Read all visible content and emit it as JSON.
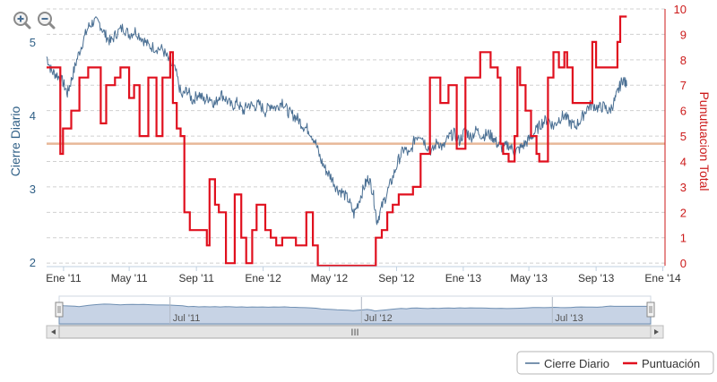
{
  "toolbar": {
    "zoom_in_icon": "magnifier-plus-icon",
    "zoom_out_icon": "magnifier-minus-icon"
  },
  "chart_data": {
    "type": "line",
    "x_axis": {
      "type": "date",
      "range": [
        "2010-12-01",
        "2014-01-05"
      ],
      "tick_labels": [
        "Ene '11",
        "May '11",
        "Sep '11",
        "Ene '12",
        "May '12",
        "Sep '12",
        "Ene '13",
        "May '13",
        "Sep '13",
        "Ene '14"
      ]
    },
    "y_axis_left": {
      "label": "Cierre Diario",
      "range": [
        1.95,
        5.45
      ],
      "ticks": [
        2,
        3,
        4,
        5
      ],
      "tick_labels": [
        "2",
        "3",
        "4",
        "5"
      ]
    },
    "y_axis_right": {
      "label": "Punutuacion Total",
      "range": [
        -0.1,
        10
      ],
      "ticks": [
        0,
        1,
        2,
        3,
        4,
        5,
        6,
        7,
        8,
        9,
        10
      ],
      "tick_labels": [
        "0",
        "1",
        "2",
        "3",
        "4",
        "5",
        "6",
        "7",
        "8",
        "9",
        "10"
      ]
    },
    "plot_line": {
      "axis": "right",
      "value": 4.7,
      "color": "#e8b898"
    },
    "grid": "horizontal dashed",
    "legend": {
      "position": "bottom-right"
    },
    "series": [
      {
        "name": "Cierre Diario",
        "axis": "left",
        "color": "#4a6f93",
        "points": [
          [
            "2010-12-01",
            4.8
          ],
          [
            "2010-12-10",
            4.6
          ],
          [
            "2010-12-20",
            4.55
          ],
          [
            "2010-12-31",
            4.45
          ],
          [
            "2011-01-08",
            4.3
          ],
          [
            "2011-01-16",
            4.5
          ],
          [
            "2011-01-25",
            4.75
          ],
          [
            "2011-02-05",
            5.0
          ],
          [
            "2011-02-15",
            5.2
          ],
          [
            "2011-02-25",
            5.28
          ],
          [
            "2011-03-08",
            5.25
          ],
          [
            "2011-03-18",
            5.1
          ],
          [
            "2011-03-28",
            5.0
          ],
          [
            "2011-04-08",
            5.12
          ],
          [
            "2011-04-20",
            5.2
          ],
          [
            "2011-05-01",
            5.1
          ],
          [
            "2011-05-12",
            5.15
          ],
          [
            "2011-05-25",
            5.05
          ],
          [
            "2011-06-05",
            4.95
          ],
          [
            "2011-06-18",
            4.92
          ],
          [
            "2011-07-01",
            4.9
          ],
          [
            "2011-07-12",
            4.75
          ],
          [
            "2011-07-25",
            4.6
          ],
          [
            "2011-08-05",
            4.25
          ],
          [
            "2011-08-15",
            4.35
          ],
          [
            "2011-08-25",
            4.2
          ],
          [
            "2011-09-05",
            4.3
          ],
          [
            "2011-09-15",
            4.2
          ],
          [
            "2011-09-25",
            4.25
          ],
          [
            "2011-10-05",
            4.15
          ],
          [
            "2011-10-15",
            4.3
          ],
          [
            "2011-10-25",
            4.22
          ],
          [
            "2011-11-05",
            4.12
          ],
          [
            "2011-11-15",
            4.18
          ],
          [
            "2011-11-25",
            4.05
          ],
          [
            "2011-12-05",
            4.15
          ],
          [
            "2011-12-15",
            4.12
          ],
          [
            "2011-12-25",
            4.15
          ],
          [
            "2012-01-05",
            4.05
          ],
          [
            "2012-01-15",
            4.15
          ],
          [
            "2012-01-25",
            4.1
          ],
          [
            "2012-02-05",
            4.2
          ],
          [
            "2012-02-15",
            4.05
          ],
          [
            "2012-02-25",
            4.0
          ],
          [
            "2012-03-05",
            3.95
          ],
          [
            "2012-03-15",
            3.85
          ],
          [
            "2012-03-25",
            3.8
          ],
          [
            "2012-04-05",
            3.65
          ],
          [
            "2012-04-15",
            3.4
          ],
          [
            "2012-04-25",
            3.25
          ],
          [
            "2012-05-05",
            3.15
          ],
          [
            "2012-05-15",
            3.0
          ],
          [
            "2012-05-25",
            2.95
          ],
          [
            "2012-06-05",
            2.85
          ],
          [
            "2012-06-15",
            2.65
          ],
          [
            "2012-06-25",
            2.85
          ],
          [
            "2012-07-05",
            3.05
          ],
          [
            "2012-07-12",
            3.15
          ],
          [
            "2012-07-20",
            2.95
          ],
          [
            "2012-07-27",
            2.55
          ],
          [
            "2012-08-05",
            2.75
          ],
          [
            "2012-08-15",
            2.95
          ],
          [
            "2012-08-25",
            3.15
          ],
          [
            "2012-09-05",
            3.4
          ],
          [
            "2012-09-15",
            3.55
          ],
          [
            "2012-09-25",
            3.45
          ],
          [
            "2012-10-05",
            3.7
          ],
          [
            "2012-10-15",
            3.75
          ],
          [
            "2012-10-25",
            3.6
          ],
          [
            "2012-11-05",
            3.5
          ],
          [
            "2012-11-15",
            3.65
          ],
          [
            "2012-11-25",
            3.55
          ],
          [
            "2012-12-05",
            3.7
          ],
          [
            "2012-12-15",
            3.75
          ],
          [
            "2012-12-25",
            3.65
          ],
          [
            "2013-01-05",
            3.8
          ],
          [
            "2013-01-15",
            3.7
          ],
          [
            "2013-01-25",
            3.8
          ],
          [
            "2013-02-05",
            3.72
          ],
          [
            "2013-02-15",
            3.75
          ],
          [
            "2013-02-25",
            3.7
          ],
          [
            "2013-03-05",
            3.6
          ],
          [
            "2013-03-15",
            3.55
          ],
          [
            "2013-03-25",
            3.6
          ],
          [
            "2013-04-05",
            3.5
          ],
          [
            "2013-04-15",
            3.55
          ],
          [
            "2013-04-25",
            3.62
          ],
          [
            "2013-05-05",
            3.7
          ],
          [
            "2013-05-15",
            3.8
          ],
          [
            "2013-05-25",
            3.9
          ],
          [
            "2013-06-05",
            3.95
          ],
          [
            "2013-06-15",
            3.85
          ],
          [
            "2013-06-25",
            3.95
          ],
          [
            "2013-07-05",
            4.0
          ],
          [
            "2013-07-15",
            3.9
          ],
          [
            "2013-07-25",
            3.85
          ],
          [
            "2013-08-05",
            3.95
          ],
          [
            "2013-08-15",
            4.1
          ],
          [
            "2013-08-25",
            4.15
          ],
          [
            "2013-09-05",
            4.1
          ],
          [
            "2013-09-15",
            4.12
          ],
          [
            "2013-09-25",
            4.05
          ],
          [
            "2013-10-05",
            4.2
          ],
          [
            "2013-10-12",
            4.35
          ],
          [
            "2013-10-20",
            4.5
          ],
          [
            "2013-10-27",
            4.4
          ]
        ]
      },
      {
        "name": "Puntuación",
        "axis": "right",
        "color": "#e0101e",
        "step": true,
        "points": [
          [
            "2010-12-01",
            7.7
          ],
          [
            "2010-12-26",
            4.3
          ],
          [
            "2010-12-31",
            5.3
          ],
          [
            "2011-01-15",
            6.0
          ],
          [
            "2011-01-30",
            7.3
          ],
          [
            "2011-02-15",
            7.7
          ],
          [
            "2011-03-10",
            5.5
          ],
          [
            "2011-03-20",
            7.0
          ],
          [
            "2011-04-05",
            7.3
          ],
          [
            "2011-04-15",
            7.7
          ],
          [
            "2011-05-01",
            6.5
          ],
          [
            "2011-05-10",
            7.0
          ],
          [
            "2011-05-20",
            5.0
          ],
          [
            "2011-06-05",
            7.3
          ],
          [
            "2011-06-20",
            5.0
          ],
          [
            "2011-07-01",
            7.3
          ],
          [
            "2011-07-15",
            8.3
          ],
          [
            "2011-07-20",
            6.3
          ],
          [
            "2011-07-27",
            5.3
          ],
          [
            "2011-08-03",
            5.0
          ],
          [
            "2011-08-10",
            2.0
          ],
          [
            "2011-08-20",
            1.3
          ],
          [
            "2011-09-20",
            0.7
          ],
          [
            "2011-09-25",
            3.3
          ],
          [
            "2011-10-05",
            2.3
          ],
          [
            "2011-10-12",
            2.0
          ],
          [
            "2011-10-25",
            0.0
          ],
          [
            "2011-11-10",
            2.7
          ],
          [
            "2011-11-22",
            1.0
          ],
          [
            "2011-12-01",
            0.0
          ],
          [
            "2011-12-12",
            1.3
          ],
          [
            "2011-12-20",
            2.3
          ],
          [
            "2012-01-05",
            1.3
          ],
          [
            "2012-01-15",
            1.0
          ],
          [
            "2012-01-25",
            0.7
          ],
          [
            "2012-02-05",
            1.0
          ],
          [
            "2012-03-01",
            0.7
          ],
          [
            "2012-03-20",
            2.0
          ],
          [
            "2012-04-01",
            0.7
          ],
          [
            "2012-04-10",
            -0.2
          ],
          [
            "2012-05-01",
            -0.2
          ],
          [
            "2012-06-01",
            -0.2
          ],
          [
            "2012-07-01",
            -0.2
          ],
          [
            "2012-07-25",
            1.0
          ],
          [
            "2012-08-05",
            1.3
          ],
          [
            "2012-08-15",
            2.0
          ],
          [
            "2012-08-25",
            2.3
          ],
          [
            "2012-09-05",
            2.7
          ],
          [
            "2012-09-15",
            2.7
          ],
          [
            "2012-10-01",
            3.0
          ],
          [
            "2012-10-15",
            4.3
          ],
          [
            "2012-11-01",
            7.3
          ],
          [
            "2012-11-20",
            6.3
          ],
          [
            "2012-12-05",
            7.0
          ],
          [
            "2012-12-20",
            4.5
          ],
          [
            "2013-01-05",
            7.3
          ],
          [
            "2013-02-01",
            8.3
          ],
          [
            "2013-02-20",
            7.7
          ],
          [
            "2013-03-05",
            7.3
          ],
          [
            "2013-03-10",
            4.7
          ],
          [
            "2013-03-15",
            4.3
          ],
          [
            "2013-03-25",
            4.0
          ],
          [
            "2013-04-05",
            5.0
          ],
          [
            "2013-04-10",
            7.7
          ],
          [
            "2013-04-15",
            7.0
          ],
          [
            "2013-04-25",
            6.0
          ],
          [
            "2013-05-05",
            5.0
          ],
          [
            "2013-05-15",
            4.3
          ],
          [
            "2013-05-20",
            4.0
          ],
          [
            "2013-06-05",
            7.3
          ],
          [
            "2013-06-15",
            8.3
          ],
          [
            "2013-06-25",
            7.7
          ],
          [
            "2013-07-05",
            8.3
          ],
          [
            "2013-07-10",
            7.7
          ],
          [
            "2013-07-20",
            6.3
          ],
          [
            "2013-08-05",
            6.3
          ],
          [
            "2013-08-25",
            8.7
          ],
          [
            "2013-09-01",
            7.7
          ],
          [
            "2013-09-15",
            7.7
          ],
          [
            "2013-10-01",
            7.7
          ],
          [
            "2013-10-10",
            8.7
          ],
          [
            "2013-10-15",
            9.7
          ],
          [
            "2013-10-27",
            9.7
          ]
        ]
      }
    ]
  },
  "navigator": {
    "tick_labels": [
      "Jul '11",
      "Jul '12",
      "Jul '13"
    ],
    "scrollbar_grip": "III",
    "left_arrow_icon": "scroll-left-arrow-icon",
    "right_arrow_icon": "scroll-right-arrow-icon"
  },
  "legend": {
    "items": [
      {
        "label": "Cierre Diario",
        "color": "#4a6f93"
      },
      {
        "label": "Puntuación",
        "color": "#e0101e"
      }
    ]
  }
}
